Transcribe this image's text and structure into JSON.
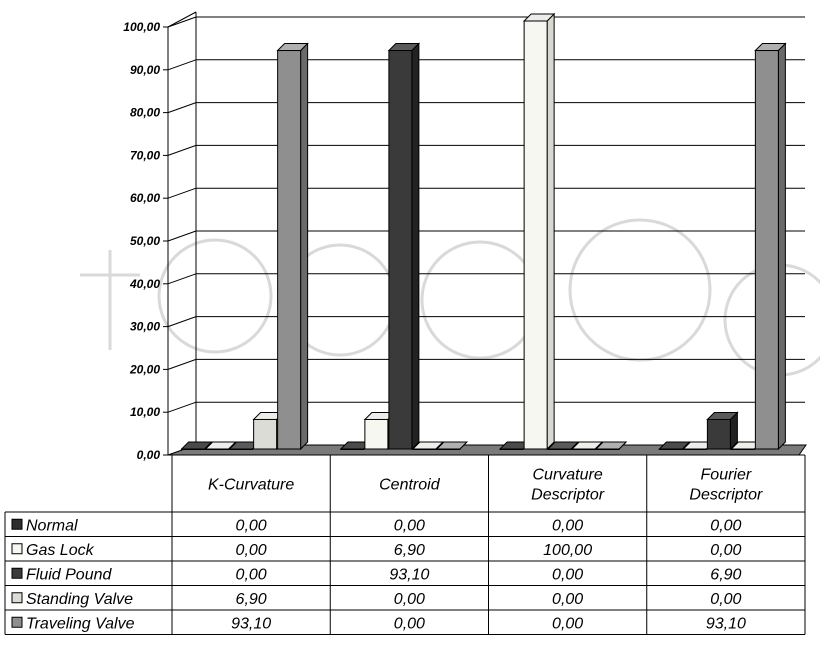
{
  "chart_data": {
    "type": "bar",
    "title": "",
    "xlabel": "",
    "ylabel": "",
    "ylim": [
      0,
      100
    ],
    "y_ticks": [
      "0,00",
      "10,00",
      "20,00",
      "30,00",
      "40,00",
      "50,00",
      "60,00",
      "70,00",
      "80,00",
      "90,00",
      "100,00"
    ],
    "grid": true,
    "legend_position": "left (data table)",
    "categories": [
      [
        "K-Curvature"
      ],
      [
        "Centroid"
      ],
      [
        "Curvature",
        "Descriptor"
      ],
      [
        "Fourier",
        "Descriptor"
      ]
    ],
    "series": [
      {
        "name": "Normal",
        "values": [
          0,
          0,
          0,
          0
        ],
        "labels": [
          "0,00",
          "0,00",
          "0,00",
          "0,00"
        ],
        "fill": "#2e2e2e",
        "side": "#1a1a1a",
        "top": "#4a4a4a"
      },
      {
        "name": "Gas Lock",
        "values": [
          0,
          6.9,
          100,
          0
        ],
        "labels": [
          "0,00",
          "6,90",
          "100,00",
          "0,00"
        ],
        "fill": "#f7f7f2",
        "side": "#d8d8d2",
        "top": "#ececec"
      },
      {
        "name": "Fluid Pound",
        "values": [
          0,
          93.1,
          0,
          6.9
        ],
        "labels": [
          "0,00",
          "93,10",
          "0,00",
          "6,90"
        ],
        "fill": "#3a3a3a",
        "side": "#222222",
        "top": "#5a5a5a"
      },
      {
        "name": "Standing Valve",
        "values": [
          6.9,
          0,
          0,
          0
        ],
        "labels": [
          "6,90",
          "0,00",
          "0,00",
          "0,00"
        ],
        "fill": "#dcdcd6",
        "side": "#bcbcb6",
        "top": "#ededea"
      },
      {
        "name": "Traveling Valve",
        "values": [
          93.1,
          0,
          0,
          93.1
        ],
        "labels": [
          "93,10",
          "0,00",
          "0,00",
          "93,10"
        ],
        "fill": "#8f8f8f",
        "side": "#6a6a6a",
        "top": "#b0b0b0"
      }
    ]
  }
}
